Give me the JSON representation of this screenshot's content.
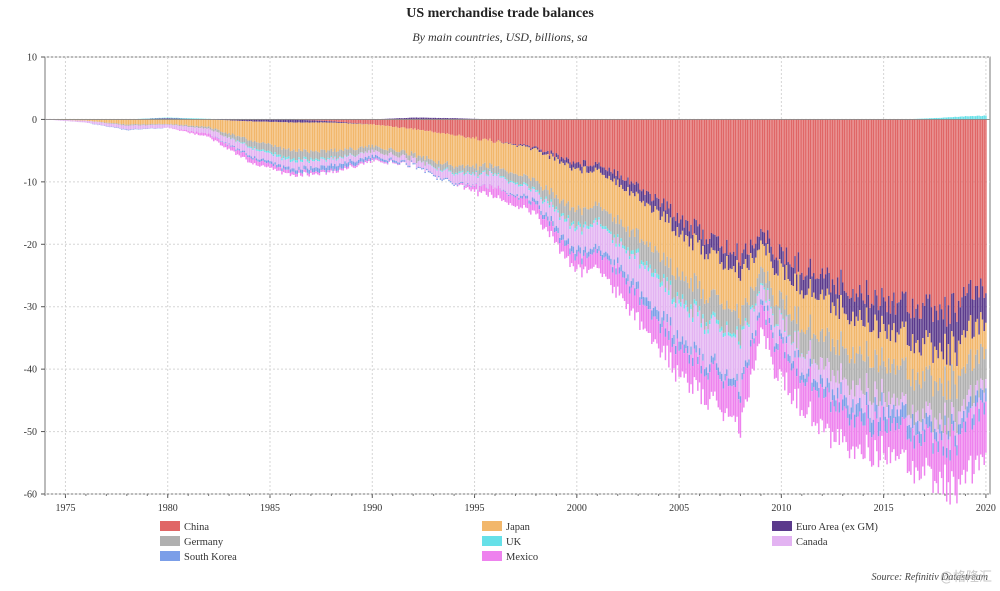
{
  "header": {
    "title": "US merchandise trade balances",
    "subtitle": "By main countries, USD, billions, sa"
  },
  "footer": {
    "source": "Source: Refinitiv Datastream",
    "watermark": "@格隆汇"
  },
  "chart_data": {
    "type": "area",
    "title": "US merchandise trade balances",
    "subtitle": "By main countries, USD, billions, sa",
    "xlim": [
      1974,
      2020.2
    ],
    "ylim": [
      -60,
      10
    ],
    "x_ticks": [
      1975,
      1980,
      1985,
      1990,
      1995,
      2000,
      2005,
      2010,
      2015,
      2020
    ],
    "y_ticks": [
      10,
      0,
      -10,
      -20,
      -30,
      -40,
      -50,
      -60
    ],
    "grid": true,
    "legend_position": "bottom",
    "x": [
      1974,
      1976,
      1978,
      1980,
      1982,
      1984,
      1986,
      1988,
      1990,
      1992,
      1994,
      1996,
      1998,
      2000,
      2001,
      2002,
      2004,
      2006,
      2008,
      2009,
      2010,
      2012,
      2014,
      2016,
      2018,
      2019,
      2020
    ],
    "series": [
      {
        "name": "China",
        "color": "#e06666",
        "values": [
          0,
          0,
          0,
          0,
          0,
          0,
          0,
          -0.3,
          -0.8,
          -1.5,
          -2.5,
          -3.5,
          -4.5,
          -7,
          -7,
          -8.5,
          -13,
          -18,
          -22,
          -18,
          -22,
          -25,
          -28,
          -29,
          -31,
          -29,
          -26
        ]
      },
      {
        "name": "Euro Area (ex GM)",
        "color": "#5b3a8c",
        "values": [
          0,
          0,
          0,
          0.2,
          0,
          -0.3,
          -0.5,
          -0.2,
          0,
          0.3,
          0.2,
          0,
          -0.3,
          -1,
          -1,
          -1.5,
          -2,
          -2.5,
          -2.5,
          -2,
          -2.5,
          -3.5,
          -4,
          -5,
          -6.5,
          -6.5,
          -5
        ]
      },
      {
        "name": "Japan",
        "color": "#f2b76b",
        "values": [
          0,
          -0.2,
          -0.8,
          -0.7,
          -1.2,
          -3,
          -4.5,
          -4.5,
          -3.5,
          -4,
          -5,
          -4,
          -5,
          -6.5,
          -5.5,
          -6,
          -6.5,
          -7,
          -6.5,
          -4,
          -5,
          -6.5,
          -5.5,
          -5.5,
          -5.5,
          -5.5,
          -4.5
        ]
      },
      {
        "name": "Germany",
        "color": "#b0b0b0",
        "values": [
          0,
          0,
          -0.2,
          -0.1,
          -0.3,
          -1,
          -1.3,
          -1.2,
          -0.8,
          -0.8,
          -1,
          -1.2,
          -1.5,
          -2.5,
          -2.5,
          -3,
          -3.5,
          -4,
          -3.5,
          -2.5,
          -3.2,
          -4.5,
          -5.5,
          -5.5,
          -6,
          -5.5,
          -5
        ]
      },
      {
        "name": "UK",
        "color": "#66e0e8",
        "values": [
          0,
          0,
          0,
          0.1,
          0.1,
          -0.2,
          -0.4,
          -0.2,
          0,
          0,
          -0.2,
          -0.2,
          -0.3,
          -0.5,
          -0.4,
          -0.5,
          -0.7,
          -0.7,
          -0.5,
          -0.3,
          -0.2,
          0,
          0,
          0,
          0.3,
          0.5,
          0.6
        ]
      },
      {
        "name": "Canada",
        "color": "#e3b3f2",
        "values": [
          0,
          -0.3,
          -0.6,
          -0.5,
          -0.8,
          -1.3,
          -1.2,
          -1,
          -0.8,
          -0.8,
          -1.5,
          -2,
          -1.5,
          -3.5,
          -4,
          -3.5,
          -5.5,
          -6,
          -7,
          -2.5,
          -3,
          -3,
          -3,
          -1.5,
          -2,
          -2,
          -1.5
        ]
      },
      {
        "name": "South Korea",
        "color": "#7b9ee8",
        "values": [
          0,
          0,
          -0.1,
          0,
          0,
          -0.3,
          -0.5,
          -0.8,
          -0.5,
          -0.2,
          -0.2,
          0,
          -0.6,
          -1,
          -0.8,
          -1,
          -1.5,
          -1.2,
          -1.1,
          -0.8,
          -1,
          -1.5,
          -2.2,
          -2.3,
          -1.5,
          -1.8,
          -2
        ]
      },
      {
        "name": "Mexico",
        "color": "#ee82ee",
        "values": [
          0,
          0,
          0,
          0,
          -0.5,
          -0.8,
          -0.5,
          -0.3,
          -0.3,
          0,
          0,
          -1.5,
          -1.5,
          -2,
          -2.5,
          -3.5,
          -4,
          -4.5,
          -5.5,
          -3.8,
          -5,
          -5.5,
          -5,
          -5,
          -6.5,
          -8,
          -8
        ]
      }
    ]
  }
}
